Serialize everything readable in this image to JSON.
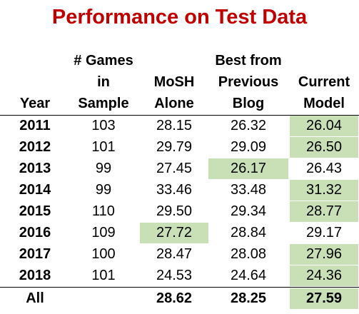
{
  "title": "Performance on Test Data",
  "colors": {
    "title": "#c00000",
    "highlight": "#c9e0b7"
  },
  "chart_data": {
    "type": "table",
    "columns": [
      {
        "key": "year",
        "lines": [
          "Year"
        ]
      },
      {
        "key": "games",
        "lines": [
          "# Games",
          "in",
          "Sample"
        ]
      },
      {
        "key": "mosh",
        "lines": [
          "MoSH",
          "Alone"
        ]
      },
      {
        "key": "best_prev",
        "lines": [
          "Best from",
          "Previous",
          "Blog"
        ]
      },
      {
        "key": "current",
        "lines": [
          "Current",
          "Model"
        ]
      }
    ],
    "rows": [
      {
        "year": "2011",
        "games": "103",
        "mosh": "28.15",
        "best_prev": "26.32",
        "current": "26.04",
        "best": "current"
      },
      {
        "year": "2012",
        "games": "101",
        "mosh": "29.79",
        "best_prev": "29.09",
        "current": "26.50",
        "best": "current"
      },
      {
        "year": "2013",
        "games": "99",
        "mosh": "27.45",
        "best_prev": "26.17",
        "current": "26.43",
        "best": "best_prev"
      },
      {
        "year": "2014",
        "games": "99",
        "mosh": "33.46",
        "best_prev": "33.48",
        "current": "31.32",
        "best": "current"
      },
      {
        "year": "2015",
        "games": "110",
        "mosh": "29.50",
        "best_prev": "29.34",
        "current": "28.77",
        "best": "current"
      },
      {
        "year": "2016",
        "games": "109",
        "mosh": "27.72",
        "best_prev": "28.84",
        "current": "29.17",
        "best": "mosh"
      },
      {
        "year": "2017",
        "games": "100",
        "mosh": "28.47",
        "best_prev": "28.08",
        "current": "27.96",
        "best": "current"
      },
      {
        "year": "2018",
        "games": "101",
        "mosh": "24.53",
        "best_prev": "24.64",
        "current": "24.36",
        "best": "current"
      }
    ],
    "total": {
      "year": "All",
      "games": "",
      "mosh": "28.62",
      "best_prev": "28.25",
      "current": "27.59",
      "best": "current"
    }
  }
}
